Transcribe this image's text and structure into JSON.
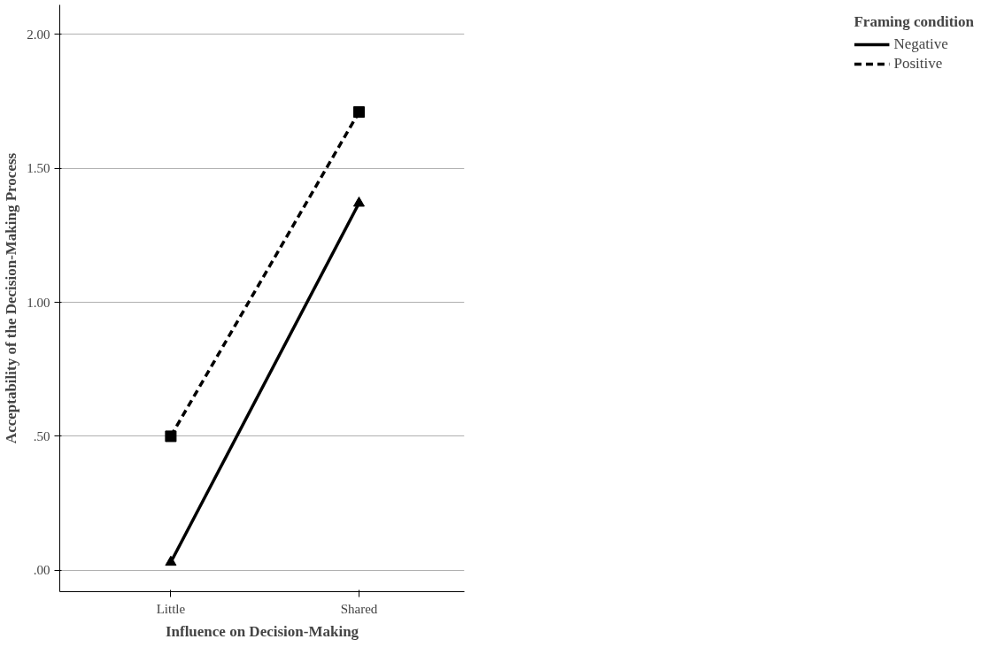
{
  "chart_data": {
    "type": "line",
    "xlabel": "Influence on Decision-Making",
    "ylabel": "Acceptability of the Decision-Making Process",
    "legend_title": "Framing condition",
    "categories": [
      "Little",
      "Shared"
    ],
    "series": [
      {
        "name": "Negative",
        "color": "#000000",
        "values": [
          0.03,
          1.37
        ],
        "marker": "triangle",
        "line_style": "solid"
      },
      {
        "name": "Positive",
        "color": "#000000",
        "values": [
          0.5,
          1.71
        ],
        "marker": "square",
        "line_style": "dashed"
      }
    ],
    "ylim": [
      -0.08,
      2.11
    ],
    "yticks": [
      {
        "value": 0,
        "label": ".00"
      },
      {
        "value": 0.5,
        "label": ".50"
      },
      {
        "value": 1,
        "label": "1.00"
      },
      {
        "value": 1.5,
        "label": "1.50"
      },
      {
        "value": 2,
        "label": "2.00"
      }
    ],
    "grid": "y",
    "legend": "top right"
  }
}
